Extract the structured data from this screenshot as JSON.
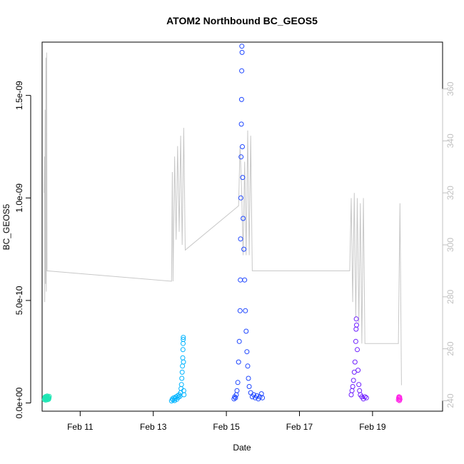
{
  "chart_data": {
    "type": "scatter",
    "title": "ATOM2 Northbound BC_GEOS5",
    "xlabel": "Date",
    "ylabel": "BC_GEOS5",
    "x_range": [
      "2017-02-09T23:00",
      "2017-02-20T22:00"
    ],
    "x_ticks": [
      {
        "label": "Feb 11",
        "date": "2017-02-11"
      },
      {
        "label": "Feb 13",
        "date": "2017-02-13"
      },
      {
        "label": "Feb 15",
        "date": "2017-02-15"
      },
      {
        "label": "Feb 17",
        "date": "2017-02-17"
      },
      {
        "label": "Feb 19",
        "date": "2017-02-19"
      }
    ],
    "ylim": [
      -4e-11,
      1.76e-09
    ],
    "y_ticks": [
      {
        "label": "0.0e+00",
        "value": 0
      },
      {
        "label": "5.0e-10",
        "value": 5e-10
      },
      {
        "label": "1.0e-09",
        "value": 1e-09
      },
      {
        "label": "1.5e-09",
        "value": 1.5e-09
      }
    ],
    "y2lim": [
      236,
      378
    ],
    "y2_ticks": [
      240,
      260,
      280,
      300,
      320,
      340,
      360
    ],
    "colors": {
      "line": "#c8c8c8",
      "series_1": "#1ee6b4",
      "series_2": "#00b4ff",
      "series_3": "#1e46ff",
      "series_4": "#6e1eff",
      "series_5": "#ff1ee6"
    },
    "series": [
      {
        "color": "#1ee6b4",
        "points": [
          [
            "2017-02-10T00:30",
            1.6e-11
          ],
          [
            "2017-02-10T00:40",
            2.4e-11
          ],
          [
            "2017-02-10T00:50",
            2e-11
          ],
          [
            "2017-02-10T01:00",
            3e-11
          ],
          [
            "2017-02-10T01:10",
            2.2e-11
          ],
          [
            "2017-02-10T01:20",
            1.4e-11
          ],
          [
            "2017-02-10T01:30",
            2.6e-11
          ],
          [
            "2017-02-10T01:40",
            3.2e-11
          ],
          [
            "2017-02-10T01:50",
            2e-11
          ],
          [
            "2017-02-10T02:00",
            1.8e-11
          ],
          [
            "2017-02-10T02:10",
            2.8e-11
          ],
          [
            "2017-02-10T02:20",
            3.4e-11
          ],
          [
            "2017-02-10T02:30",
            2.4e-11
          ],
          [
            "2017-02-10T02:40",
            1.6e-11
          ],
          [
            "2017-02-10T02:50",
            2.2e-11
          ],
          [
            "2017-02-10T03:00",
            3e-11
          ],
          [
            "2017-02-10T03:10",
            2.6e-11
          ],
          [
            "2017-02-10T03:20",
            1.8e-11
          ],
          [
            "2017-02-10T03:30",
            2.4e-11
          ],
          [
            "2017-02-10T03:40",
            3.2e-11
          ]
        ]
      },
      {
        "color": "#00b4ff",
        "points": [
          [
            "2017-02-13T12:00",
            1e-11
          ],
          [
            "2017-02-13T12:30",
            2e-11
          ],
          [
            "2017-02-13T13:00",
            1.5e-11
          ],
          [
            "2017-02-13T13:30",
            2.5e-11
          ],
          [
            "2017-02-13T14:00",
            1.2e-11
          ],
          [
            "2017-02-13T14:30",
            2.2e-11
          ],
          [
            "2017-02-13T15:00",
            3e-11
          ],
          [
            "2017-02-13T15:30",
            1.8e-11
          ],
          [
            "2017-02-13T16:00",
            3.5e-11
          ],
          [
            "2017-02-13T16:30",
            2.8e-11
          ],
          [
            "2017-02-13T17:00",
            4e-11
          ],
          [
            "2017-02-13T17:30",
            3.2e-11
          ],
          [
            "2017-02-13T18:00",
            5e-11
          ],
          [
            "2017-02-13T18:15",
            7e-11
          ],
          [
            "2017-02-13T18:30",
            9e-11
          ],
          [
            "2017-02-13T18:45",
            1.2e-10
          ],
          [
            "2017-02-13T19:00",
            1.5e-10
          ],
          [
            "2017-02-13T19:10",
            1.8e-10
          ],
          [
            "2017-02-13T19:20",
            2.2e-10
          ],
          [
            "2017-02-13T19:30",
            2.6e-10
          ],
          [
            "2017-02-13T19:35",
            2.9e-10
          ],
          [
            "2017-02-13T19:40",
            3.1e-10
          ],
          [
            "2017-02-13T19:45",
            3.2e-10
          ],
          [
            "2017-02-13T19:50",
            2e-10
          ],
          [
            "2017-02-13T20:00",
            6e-11
          ],
          [
            "2017-02-13T20:10",
            4e-11
          ]
        ]
      },
      {
        "color": "#1e46ff",
        "points": [
          [
            "2017-02-15T05:00",
            2e-11
          ],
          [
            "2017-02-15T05:30",
            3e-11
          ],
          [
            "2017-02-15T06:00",
            2.5e-11
          ],
          [
            "2017-02-15T06:30",
            4e-11
          ],
          [
            "2017-02-15T07:00",
            6e-11
          ],
          [
            "2017-02-15T07:30",
            1e-10
          ],
          [
            "2017-02-15T08:00",
            2e-10
          ],
          [
            "2017-02-15T08:30",
            3e-10
          ],
          [
            "2017-02-15T09:00",
            4.5e-10
          ],
          [
            "2017-02-15T09:10",
            6e-10
          ],
          [
            "2017-02-15T09:20",
            8e-10
          ],
          [
            "2017-02-15T09:30",
            1e-09
          ],
          [
            "2017-02-15T09:40",
            1.2e-09
          ],
          [
            "2017-02-15T09:50",
            1.36e-09
          ],
          [
            "2017-02-15T10:00",
            1.48e-09
          ],
          [
            "2017-02-15T10:05",
            1.62e-09
          ],
          [
            "2017-02-15T10:10",
            1.74e-09
          ],
          [
            "2017-02-15T10:20",
            1.71e-09
          ],
          [
            "2017-02-15T10:30",
            1.25e-09
          ],
          [
            "2017-02-15T10:40",
            1.1e-09
          ],
          [
            "2017-02-15T11:00",
            9e-10
          ],
          [
            "2017-02-15T11:30",
            7.5e-10
          ],
          [
            "2017-02-15T12:00",
            6e-10
          ],
          [
            "2017-02-15T12:30",
            4.5e-10
          ],
          [
            "2017-02-15T13:00",
            3.5e-10
          ],
          [
            "2017-02-15T13:30",
            2.5e-10
          ],
          [
            "2017-02-15T14:00",
            1.8e-10
          ],
          [
            "2017-02-15T14:30",
            1.2e-10
          ],
          [
            "2017-02-15T15:00",
            8e-11
          ],
          [
            "2017-02-15T16:00",
            5e-11
          ],
          [
            "2017-02-15T17:00",
            3e-11
          ],
          [
            "2017-02-15T18:00",
            4e-11
          ],
          [
            "2017-02-15T19:00",
            2.5e-11
          ],
          [
            "2017-02-15T20:00",
            3.5e-11
          ],
          [
            "2017-02-15T21:00",
            2e-11
          ],
          [
            "2017-02-15T22:00",
            3e-11
          ],
          [
            "2017-02-15T23:00",
            4.5e-11
          ],
          [
            "2017-02-15T23:40",
            2.5e-11
          ]
        ]
      },
      {
        "color": "#6e1eff",
        "points": [
          [
            "2017-02-18T10:00",
            4e-11
          ],
          [
            "2017-02-18T10:30",
            6e-11
          ],
          [
            "2017-02-18T11:00",
            8e-11
          ],
          [
            "2017-02-18T11:30",
            1.1e-10
          ],
          [
            "2017-02-18T12:00",
            1.5e-10
          ],
          [
            "2017-02-18T12:30",
            2e-10
          ],
          [
            "2017-02-18T13:00",
            3e-10
          ],
          [
            "2017-02-18T13:10",
            3.6e-10
          ],
          [
            "2017-02-18T13:20",
            4.1e-10
          ],
          [
            "2017-02-18T13:30",
            3.8e-10
          ],
          [
            "2017-02-18T14:00",
            2.6e-10
          ],
          [
            "2017-02-18T14:30",
            1.6e-10
          ],
          [
            "2017-02-18T15:00",
            9e-11
          ],
          [
            "2017-02-18T15:30",
            6e-11
          ],
          [
            "2017-02-18T16:00",
            4e-11
          ],
          [
            "2017-02-18T17:00",
            3e-11
          ],
          [
            "2017-02-18T18:00",
            2e-11
          ],
          [
            "2017-02-18T19:00",
            3e-11
          ],
          [
            "2017-02-18T20:00",
            2.5e-11
          ]
        ]
      },
      {
        "color": "#ff1ee6",
        "points": [
          [
            "2017-02-19T17:00",
            1.5e-11
          ],
          [
            "2017-02-19T17:10",
            2.5e-11
          ],
          [
            "2017-02-19T17:20",
            3e-11
          ],
          [
            "2017-02-19T17:30",
            2e-11
          ],
          [
            "2017-02-19T17:40",
            1.2e-11
          ],
          [
            "2017-02-19T17:50",
            2.8e-11
          ],
          [
            "2017-02-19T18:00",
            1.8e-11
          ]
        ]
      }
    ],
    "line_series": {
      "axis": "right",
      "points": [
        [
          "2017-02-10T00:15",
          320
        ],
        [
          "2017-02-10T00:30",
          334
        ],
        [
          "2017-02-10T00:45",
          278
        ],
        [
          "2017-02-10T01:00",
          352
        ],
        [
          "2017-02-10T01:15",
          285
        ],
        [
          "2017-02-10T01:30",
          372
        ],
        [
          "2017-02-10T01:45",
          282
        ],
        [
          "2017-02-10T02:00",
          374
        ],
        [
          "2017-02-10T02:15",
          290
        ],
        [
          "2017-02-13T12:00",
          286
        ],
        [
          "2017-02-13T12:30",
          328
        ],
        [
          "2017-02-13T13:00",
          286
        ],
        [
          "2017-02-13T14:00",
          334
        ],
        [
          "2017-02-13T15:00",
          302
        ],
        [
          "2017-02-13T16:00",
          338
        ],
        [
          "2017-02-13T17:00",
          305
        ],
        [
          "2017-02-13T18:00",
          342
        ],
        [
          "2017-02-13T19:00",
          300
        ],
        [
          "2017-02-13T20:00",
          345
        ],
        [
          "2017-02-13T21:00",
          298
        ],
        [
          "2017-02-15T08:00",
          315
        ],
        [
          "2017-02-15T09:00",
          338
        ],
        [
          "2017-02-15T10:00",
          322
        ],
        [
          "2017-02-15T11:00",
          296
        ],
        [
          "2017-02-15T12:00",
          332
        ],
        [
          "2017-02-15T13:00",
          296
        ],
        [
          "2017-02-15T14:00",
          344
        ],
        [
          "2017-02-15T15:00",
          296
        ],
        [
          "2017-02-15T16:00",
          342
        ],
        [
          "2017-02-15T17:00",
          290
        ],
        [
          "2017-02-18T09:00",
          290
        ],
        [
          "2017-02-18T10:00",
          318
        ],
        [
          "2017-02-18T11:00",
          278
        ],
        [
          "2017-02-18T12:00",
          320
        ],
        [
          "2017-02-18T13:00",
          272
        ],
        [
          "2017-02-18T14:00",
          318
        ],
        [
          "2017-02-18T15:00",
          270
        ],
        [
          "2017-02-18T16:00",
          316
        ],
        [
          "2017-02-18T17:00",
          262
        ],
        [
          "2017-02-18T18:00",
          318
        ],
        [
          "2017-02-18T19:00",
          262
        ],
        [
          "2017-02-19T17:00",
          262
        ],
        [
          "2017-02-19T18:00",
          316
        ],
        [
          "2017-02-19T19:00",
          246
        ]
      ]
    }
  }
}
